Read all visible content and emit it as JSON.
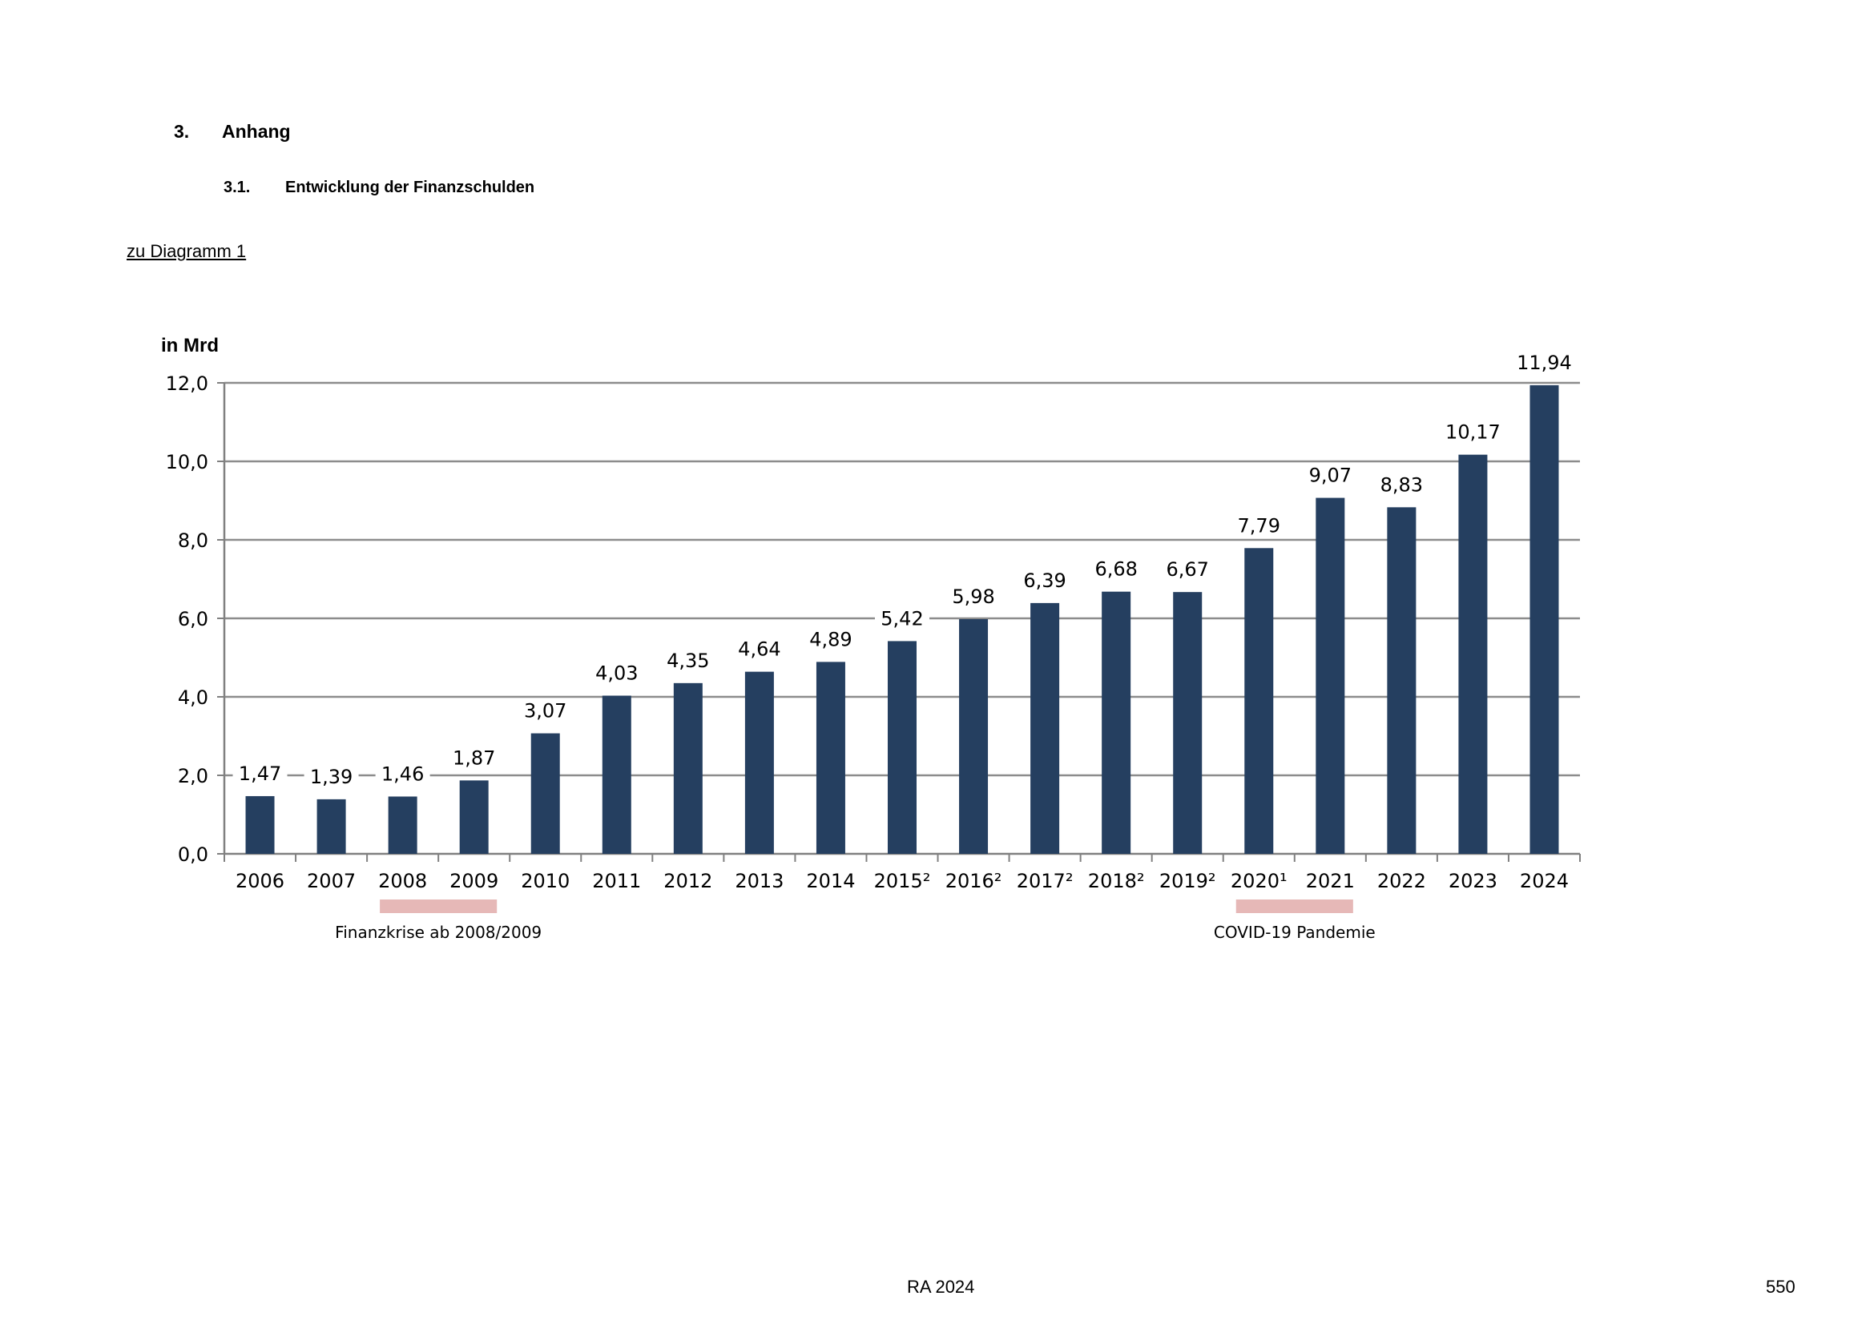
{
  "document": {
    "section_number": "3.",
    "section_title": "Anhang",
    "subsection_number": "3.1.",
    "subsection_title": "Entwicklung der Finanzschulden",
    "diagram_link": "zu Diagramm 1"
  },
  "footer": {
    "center": "RA 2024",
    "page_number": "550"
  },
  "colors": {
    "bar": "#253f60",
    "grid": "#8c8c8c",
    "axis": "#808080",
    "annotation_band": "#e6b8b7"
  },
  "chart_data": {
    "type": "bar",
    "ylabel": "in Mrd",
    "ylim": [
      0,
      12
    ],
    "yticks": [
      "0,0",
      "2,0",
      "4,0",
      "6,0",
      "8,0",
      "10,0",
      "12,0"
    ],
    "grid": true,
    "categories": [
      "2006",
      "2007",
      "2008",
      "2009",
      "2010",
      "2011",
      "2012",
      "2013",
      "2014",
      "2015²",
      "2016²",
      "2017²",
      "2018²",
      "2019²",
      "2020¹",
      "2021",
      "2022",
      "2023",
      "2024"
    ],
    "values": [
      1.47,
      1.39,
      1.46,
      1.87,
      3.07,
      4.03,
      4.35,
      4.64,
      4.89,
      5.42,
      5.98,
      6.39,
      6.68,
      6.67,
      7.79,
      9.07,
      8.83,
      10.17,
      11.94
    ],
    "labels": [
      "1,47",
      "1,39",
      "1,46",
      "1,87",
      "3,07",
      "4,03",
      "4,35",
      "4,64",
      "4,89",
      "5,42",
      "5,98",
      "6,39",
      "6,68",
      "6,67",
      "7,79",
      "9,07",
      "8,83",
      "10,17",
      "11,94"
    ],
    "annotations": [
      {
        "text": "Finanzkrise ab 2008/2009",
        "from_category": 2,
        "to_category": 3
      },
      {
        "text": "COVID-19 Pandemie",
        "from_category": 14,
        "to_category": 15
      }
    ]
  }
}
